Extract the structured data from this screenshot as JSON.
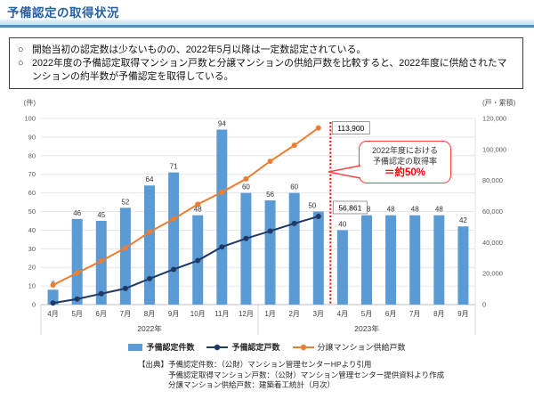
{
  "header": {
    "title": "予備認定の取得状況"
  },
  "summary": {
    "bullets": [
      "開始当初の認定数は少ないものの、2022年5月以降は一定数認定されている。",
      "2022年度の予備認定取得マンション戸数と分譲マンションの供給戸数を比較すると、2022年度に供給されたマンションの約半数が予備認定を取得している。"
    ]
  },
  "chart_data": {
    "type": "bar",
    "subtype": "combo-bar-line",
    "categories": [
      "4月",
      "5月",
      "6月",
      "7月",
      "8月",
      "9月",
      "10月",
      "11月",
      "12月",
      "1月",
      "2月",
      "3月",
      "4月",
      "5月",
      "6月",
      "7月",
      "8月",
      "9月"
    ],
    "year_groups": [
      {
        "label": "2022年",
        "span": 9
      },
      {
        "label": "2023年",
        "span": 9
      }
    ],
    "left_axis": {
      "label": "(件)",
      "min": 0,
      "max": 100,
      "step": 10
    },
    "right_axis": {
      "label": "(戸・累積)",
      "min": 0,
      "max": 120000,
      "step": 20000
    },
    "grid": true,
    "legend_position": "bottom",
    "series": [
      {
        "name": "予備認定件数",
        "type": "bar",
        "axis": "left",
        "color": "#5B9BD5",
        "values": [
          8,
          46,
          45,
          52,
          64,
          71,
          48,
          94,
          60,
          56,
          60,
          50,
          40,
          48,
          48,
          48,
          48,
          42
        ]
      },
      {
        "name": "予備認定戸数",
        "type": "line",
        "axis": "right",
        "color": "#203864",
        "values": [
          1000,
          3600,
          7000,
          10400,
          16700,
          22700,
          28400,
          37200,
          42600,
          47400,
          52300,
          56861
        ]
      },
      {
        "name": "分譲マンション供給戸数",
        "type": "line",
        "axis": "right",
        "color": "#ED7D31",
        "values": [
          12600,
          20400,
          28100,
          36500,
          46800,
          55200,
          64700,
          72500,
          81000,
          92400,
          102700,
          113900
        ]
      }
    ],
    "annotations": {
      "supply_total_label": "113,900",
      "certified_total_label": "56,861",
      "fiscal_year_end_line": {
        "color": "#FF0000",
        "position_after_category_index": 11
      },
      "callout": {
        "lines": [
          "2022年度における",
          "予備認定の取得率"
        ],
        "highlight": "＝約50%"
      }
    }
  },
  "source": {
    "label": "【出典】",
    "lines": [
      "予備認定件数：（公財）マンション管理センターHPより引用",
      "予備認定取得マンション戸数：（公財）マンション管理センター提供資料より作成",
      "分譲マンション供給戸数：建築着工統計（月次）"
    ]
  }
}
